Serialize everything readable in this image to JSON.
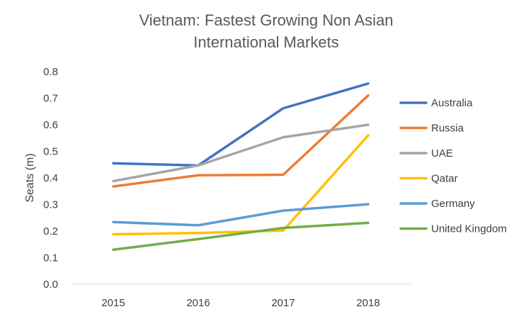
{
  "chart_data": {
    "type": "line",
    "title": "Vietnam: Fastest Growing Non Asian International Markets",
    "title_lines": [
      "Vietnam: Fastest Growing Non Asian",
      "International Markets"
    ],
    "ylabel": "Seats (m)",
    "xlabel": "",
    "categories": [
      "2015",
      "2016",
      "2017",
      "2018"
    ],
    "ylim": [
      0,
      0.8
    ],
    "yticks": [
      "0.0",
      "0.1",
      "0.2",
      "0.3",
      "0.4",
      "0.5",
      "0.6",
      "0.7",
      "0.8"
    ],
    "grid": false,
    "legend_position": "right",
    "series": [
      {
        "name": "Australia",
        "color": "#4472C4",
        "values": [
          0.455,
          0.447,
          0.662,
          0.755
        ]
      },
      {
        "name": "Russia",
        "color": "#ED7D31",
        "values": [
          0.368,
          0.41,
          0.412,
          0.71
        ]
      },
      {
        "name": "UAE",
        "color": "#A5A5A5",
        "values": [
          0.388,
          0.447,
          0.553,
          0.6
        ]
      },
      {
        "name": "Qatar",
        "color": "#FFC000",
        "values": [
          0.188,
          0.193,
          0.202,
          0.56
        ]
      },
      {
        "name": "Germany",
        "color": "#5B9BD5",
        "values": [
          0.234,
          0.222,
          0.277,
          0.301
        ]
      },
      {
        "name": "United Kingdom",
        "color": "#70AD47",
        "values": [
          0.13,
          0.17,
          0.212,
          0.231
        ]
      }
    ]
  }
}
